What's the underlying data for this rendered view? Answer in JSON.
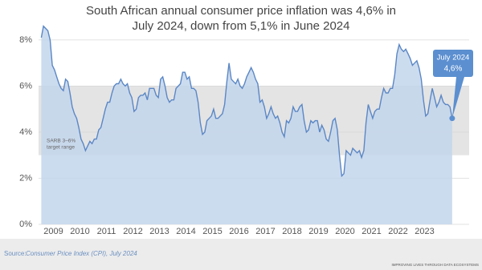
{
  "chart_data": {
    "type": "area",
    "title": [
      "South African annual consumer price inflation was 4,6% in",
      "July 2024, down from 5,1% in June 2024"
    ],
    "categories": [
      null,
      null,
      null,
      null,
      null,
      null,
      "2009",
      null,
      null,
      null,
      null,
      null,
      null,
      null,
      null,
      null,
      null,
      null,
      "2010",
      null,
      null,
      null,
      null,
      null,
      null,
      null,
      null,
      null,
      null,
      null,
      "2011",
      null,
      null,
      null,
      null,
      null,
      null,
      null,
      null,
      null,
      null,
      null,
      "2012",
      null,
      null,
      null,
      null,
      null,
      null,
      null,
      null,
      null,
      null,
      null,
      "2013",
      null,
      null,
      null,
      null,
      null,
      null,
      null,
      null,
      null,
      null,
      null,
      "2014",
      null,
      null,
      null,
      null,
      null,
      null,
      null,
      null,
      null,
      null,
      null,
      "2015",
      null,
      null,
      null,
      null,
      null,
      null,
      null,
      null,
      null,
      null,
      null,
      "2016",
      null,
      null,
      null,
      null,
      null,
      null,
      null,
      null,
      null,
      null,
      null,
      "2017",
      null,
      null,
      null,
      null,
      null,
      null,
      null,
      null,
      null,
      null,
      null,
      "2018",
      null,
      null,
      null,
      null,
      null,
      null,
      null,
      null,
      null,
      null,
      null,
      "2019",
      null,
      null,
      null,
      null,
      null,
      null,
      null,
      null,
      null,
      null,
      null,
      "2020",
      null,
      null,
      null,
      null,
      null,
      null,
      null,
      null,
      null,
      null,
      null,
      "2021",
      null,
      null,
      null,
      null,
      null,
      null,
      null,
      null,
      null,
      null,
      null,
      "2022",
      null,
      null,
      null,
      null,
      null,
      null,
      null,
      null,
      null,
      null,
      null,
      "2023",
      null,
      null,
      null,
      null,
      null,
      null,
      null,
      null,
      null,
      null,
      null,
      null
    ],
    "values": [
      8.1,
      8.6,
      8.5,
      8.4,
      8.0,
      6.9,
      6.7,
      6.4,
      6.1,
      5.9,
      5.8,
      6.3,
      6.2,
      5.7,
      5.1,
      4.8,
      4.6,
      4.2,
      3.7,
      3.5,
      3.2,
      3.4,
      3.6,
      3.5,
      3.7,
      3.7,
      4.1,
      4.2,
      4.6,
      5.0,
      5.3,
      5.3,
      5.7,
      6.0,
      6.1,
      6.1,
      6.3,
      6.1,
      6.0,
      6.1,
      5.7,
      5.5,
      4.9,
      5.0,
      5.5,
      5.6,
      5.6,
      5.7,
      5.4,
      5.9,
      5.9,
      5.9,
      5.6,
      5.5,
      6.3,
      6.4,
      6.0,
      5.5,
      5.3,
      5.4,
      5.4,
      5.9,
      6.0,
      6.1,
      6.6,
      6.6,
      6.3,
      6.4,
      5.9,
      5.9,
      5.8,
      5.3,
      4.4,
      3.9,
      4.0,
      4.5,
      4.6,
      4.7,
      5.0,
      4.6,
      4.6,
      4.7,
      4.8,
      5.2,
      6.2,
      7.0,
      6.3,
      6.2,
      6.1,
      6.3,
      6.0,
      5.9,
      6.1,
      6.4,
      6.6,
      6.8,
      6.6,
      6.3,
      6.1,
      5.3,
      5.4,
      5.1,
      4.6,
      4.8,
      5.1,
      4.8,
      4.6,
      4.7,
      4.4,
      4.0,
      3.8,
      4.5,
      4.4,
      4.6,
      5.1,
      4.9,
      4.9,
      5.1,
      5.2,
      4.5,
      4.0,
      4.1,
      4.5,
      4.4,
      4.5,
      4.5,
      4.0,
      4.3,
      4.1,
      3.7,
      3.6,
      4.0,
      4.5,
      4.6,
      4.1,
      3.0,
      2.1,
      2.2,
      3.2,
      3.1,
      3.0,
      3.3,
      3.2,
      3.1,
      3.2,
      2.9,
      3.2,
      4.4,
      5.2,
      4.9,
      4.6,
      4.9,
      5.0,
      5.0,
      5.5,
      5.9,
      5.7,
      5.7,
      5.9,
      5.9,
      6.5,
      7.4,
      7.8,
      7.6,
      7.5,
      7.6,
      7.4,
      7.2,
      6.9,
      7.0,
      7.1,
      6.8,
      6.3,
      5.4,
      4.7,
      4.8,
      5.4,
      5.9,
      5.5,
      5.1,
      5.3,
      5.6,
      5.3,
      5.2,
      5.2,
      5.1,
      4.6
    ],
    "color": "#5b87c5",
    "fill": "#c3d6ec",
    "ylim": [
      0,
      8.9
    ],
    "yticks": [
      {
        "value": 0,
        "label": "0%"
      },
      {
        "value": 2,
        "label": "2%"
      },
      {
        "value": 4,
        "label": "4%"
      },
      {
        "value": 6,
        "label": "6%"
      },
      {
        "value": 8,
        "label": "8%"
      }
    ],
    "grid": true,
    "band": {
      "from": 3,
      "to": 6,
      "color": "#e4e4e4",
      "label": [
        "SARB 3–6%",
        "target range"
      ]
    },
    "callout": {
      "date": "July 2024",
      "value_label": "4,6%",
      "color": "#5b8fd0"
    },
    "source": {
      "prefix": "Source:",
      "text": "Consumer Price Index (CPI), July 2024"
    },
    "footer": "IMPROVING LIVES THROUGH DATA ECOSYSTEMS"
  }
}
